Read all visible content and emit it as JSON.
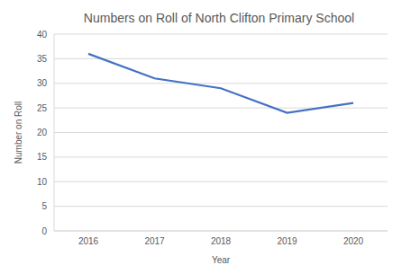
{
  "chart_data": {
    "type": "line",
    "title": "Numbers on Roll of North Clifton Primary School",
    "x_label": "Year",
    "y_label": "Number on Roll",
    "categories": [
      "2016",
      "2017",
      "2018",
      "2019",
      "2020"
    ],
    "values": [
      36,
      31,
      29,
      24,
      26
    ],
    "color": "#4472c4",
    "ylim": [
      0,
      40
    ],
    "yticks": [
      0,
      5,
      10,
      15,
      20,
      25,
      30,
      35,
      40
    ],
    "grid": true
  }
}
